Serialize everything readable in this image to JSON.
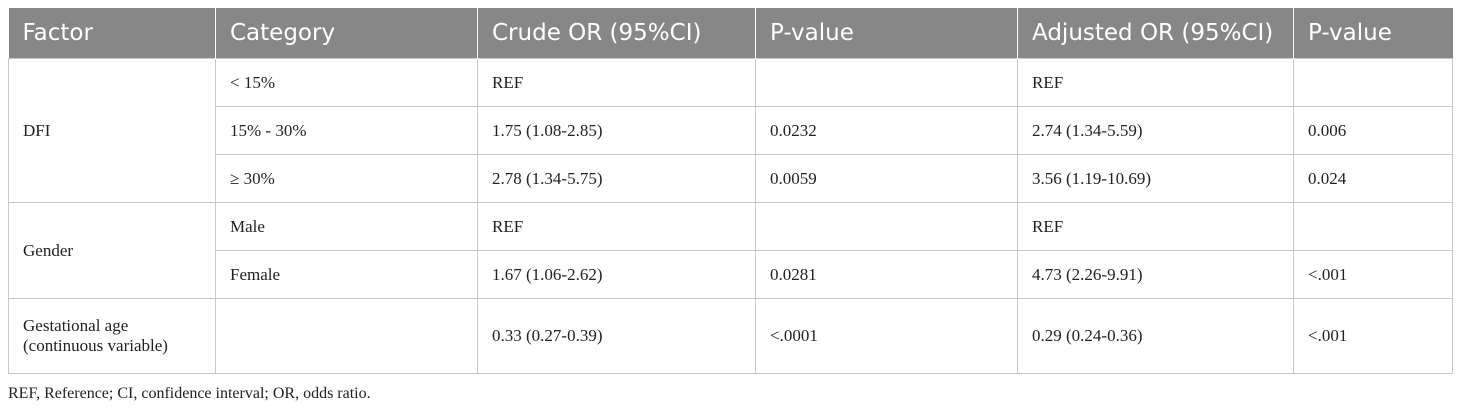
{
  "table": {
    "headers": [
      "Factor",
      "Category",
      "Crude OR (95%CI)",
      "P-value",
      "Adjusted OR (95%CI)",
      "P-value"
    ],
    "groups": [
      {
        "factor": "DFI",
        "rows": [
          [
            "< 15%",
            "REF",
            null,
            "REF",
            null
          ],
          [
            "15% - 30%",
            "1.75 (1.08-2.85)",
            "0.0232",
            "2.74 (1.34-5.59)",
            "0.006"
          ],
          [
            "≥ 30%",
            "2.78 (1.34-5.75)",
            "0.0059",
            "3.56 (1.19-10.69)",
            "0.024"
          ]
        ]
      },
      {
        "factor": "Gender",
        "rows": [
          [
            "Male",
            "REF",
            null,
            "REF",
            null
          ],
          [
            "Female",
            "1.67 (1.06-2.62)",
            "0.0281",
            "4.73 (2.26-9.91)",
            "<.001"
          ]
        ]
      },
      {
        "factor": "Gestational age (continuous variable)",
        "rows": [
          [
            null,
            "0.33 (0.27-0.39)",
            "<.0001",
            "0.29 (0.24-0.36)",
            "<.001"
          ]
        ]
      }
    ]
  },
  "footnote": "REF, Reference; CI, confidence interval; OR, odds ratio."
}
